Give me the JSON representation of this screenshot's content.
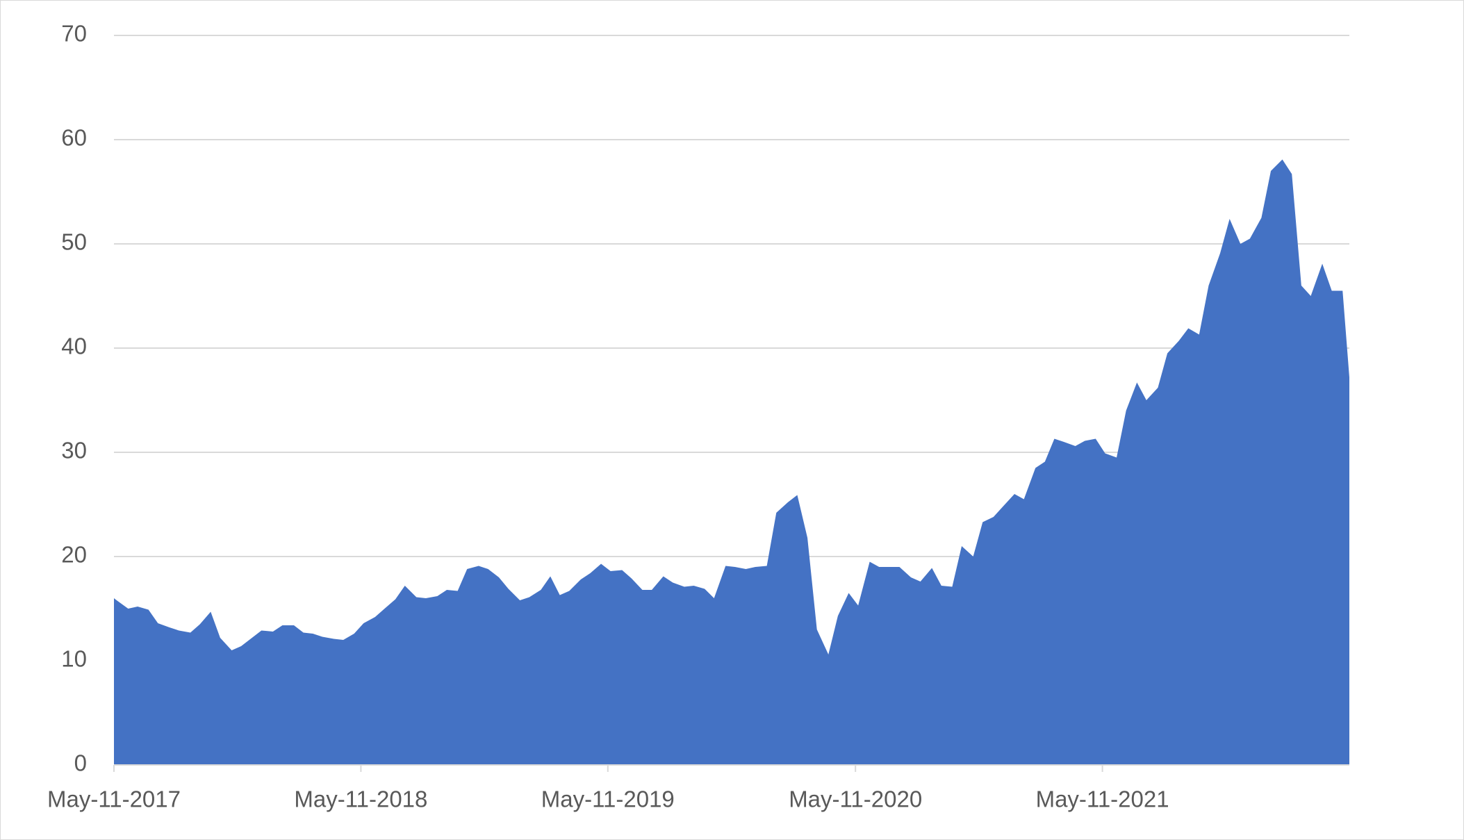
{
  "chart_data": {
    "type": "area",
    "x": [
      "2017-05-11",
      "2017-05-15",
      "2017-06-01",
      "2017-06-15",
      "2017-07-01",
      "2017-07-15",
      "2017-08-01",
      "2017-08-15",
      "2017-09-01",
      "2017-09-15",
      "2017-10-01",
      "2017-10-15",
      "2017-11-01",
      "2017-11-15",
      "2017-12-01",
      "2017-12-15",
      "2018-01-01",
      "2018-01-15",
      "2018-02-01",
      "2018-02-15",
      "2018-03-01",
      "2018-03-15",
      "2018-04-01",
      "2018-04-15",
      "2018-05-01",
      "2018-05-15",
      "2018-06-01",
      "2018-06-15",
      "2018-07-01",
      "2018-07-15",
      "2018-08-01",
      "2018-08-15",
      "2018-09-01",
      "2018-09-15",
      "2018-10-01",
      "2018-10-15",
      "2018-11-01",
      "2018-11-15",
      "2018-12-01",
      "2018-12-15",
      "2019-01-01",
      "2019-01-15",
      "2019-02-01",
      "2019-02-15",
      "2019-03-01",
      "2019-03-15",
      "2019-04-01",
      "2019-04-15",
      "2019-05-01",
      "2019-05-15",
      "2019-06-01",
      "2019-06-15",
      "2019-07-01",
      "2019-07-15",
      "2019-08-01",
      "2019-08-15",
      "2019-09-01",
      "2019-09-15",
      "2019-10-01",
      "2019-10-15",
      "2019-11-01",
      "2019-11-15",
      "2019-12-01",
      "2019-12-15",
      "2020-01-01",
      "2020-01-15",
      "2020-02-01",
      "2020-02-15",
      "2020-03-01",
      "2020-03-15",
      "2020-04-01",
      "2020-04-15",
      "2020-05-01",
      "2020-05-15",
      "2020-06-01",
      "2020-06-15",
      "2020-07-01",
      "2020-07-15",
      "2020-08-01",
      "2020-08-15",
      "2020-09-01",
      "2020-09-15",
      "2020-10-01",
      "2020-10-15",
      "2020-11-01",
      "2020-11-15",
      "2020-12-01",
      "2020-12-15",
      "2021-01-01",
      "2021-01-15",
      "2021-02-01",
      "2021-02-15",
      "2021-03-01",
      "2021-03-15",
      "2021-04-01",
      "2021-04-15",
      "2021-05-01",
      "2021-05-15",
      "2021-06-01",
      "2021-06-15",
      "2021-07-01",
      "2021-07-15",
      "2021-08-01",
      "2021-08-15",
      "2021-09-01",
      "2021-09-15",
      "2021-10-01",
      "2021-10-15",
      "2021-11-01",
      "2021-11-15",
      "2021-12-01",
      "2021-12-15",
      "2022-01-01",
      "2022-01-15",
      "2022-02-01",
      "2022-02-15",
      "2022-03-01",
      "2022-03-15",
      "2022-04-01",
      "2022-04-15",
      "2022-05-01",
      "2022-05-11"
    ],
    "values": [
      16,
      15.8,
      15.0,
      15.2,
      14.9,
      13.6,
      13.2,
      12.9,
      12.7,
      13.5,
      14.7,
      12.2,
      11.0,
      11.4,
      12.2,
      12.9,
      12.8,
      13.4,
      13.4,
      12.7,
      12.6,
      12.3,
      12.1,
      12.0,
      12.6,
      13.6,
      14.2,
      15.0,
      15.9,
      17.2,
      16.1,
      16.0,
      16.2,
      16.8,
      16.7,
      18.8,
      19.1,
      18.8,
      18.0,
      16.9,
      15.8,
      16.1,
      16.8,
      18.1,
      16.3,
      16.7,
      17.8,
      18.4,
      19.3,
      18.6,
      18.7,
      17.9,
      16.8,
      16.8,
      18.1,
      17.5,
      17.1,
      17.2,
      16.9,
      16.0,
      19.1,
      19.0,
      18.8,
      19.0,
      19.1,
      24.2,
      25.2,
      25.9,
      21.8,
      13.0,
      10.6,
      14.3,
      16.5,
      15.3,
      19.5,
      19.0,
      19.0,
      19.0,
      18.0,
      17.6,
      18.9,
      17.2,
      17.1,
      21.0,
      20.0,
      23.3,
      23.8,
      24.8,
      26.0,
      25.5,
      28.5,
      29.1,
      31.3,
      31.0,
      30.6,
      31.1,
      31.3,
      29.9,
      29.5,
      34.0,
      36.7,
      35.0,
      36.2,
      39.5,
      40.7,
      41.9,
      41.3,
      46.0,
      49.1,
      52.4,
      50.0,
      50.5,
      52.5,
      57.0,
      58.1,
      56.7,
      46.0,
      45.0,
      48.1,
      45.5,
      45.5,
      37.2
    ],
    "color": "#4472c4",
    "xlim": [
      "2017-05-11",
      "2022-05-11"
    ],
    "xticks": [
      {
        "value": "2017-05-11",
        "label": "May-11-2017"
      },
      {
        "value": "2018-05-11",
        "label": "May-11-2018"
      },
      {
        "value": "2019-05-11",
        "label": "May-11-2019"
      },
      {
        "value": "2020-05-11",
        "label": "May-11-2020"
      },
      {
        "value": "2021-05-11",
        "label": "May-11-2021"
      }
    ],
    "ylim": [
      0,
      70
    ],
    "yticks": [
      0,
      10,
      20,
      30,
      40,
      50,
      60,
      70
    ],
    "grid": true
  }
}
